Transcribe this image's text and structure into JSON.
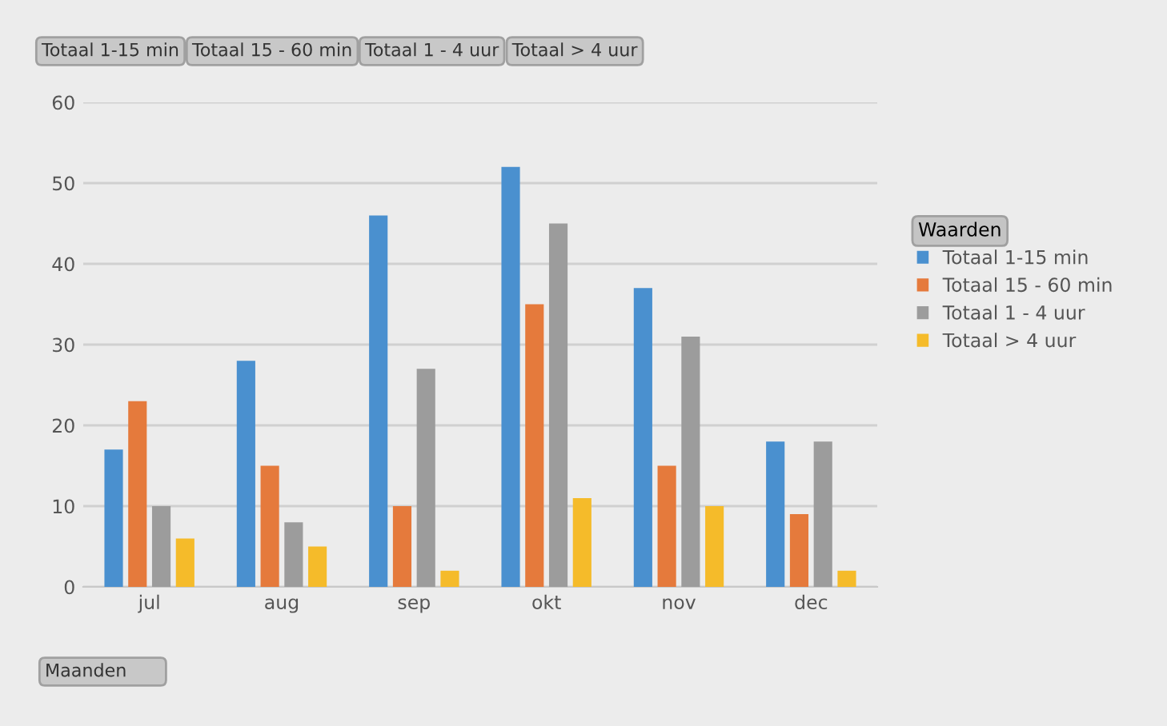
{
  "chart_data": {
    "type": "bar",
    "categories": [
      "jul",
      "aug",
      "sep",
      "okt",
      "nov",
      "dec"
    ],
    "series": [
      {
        "name": "Totaal 1-15 min",
        "color": "#4a90cf",
        "values": [
          17,
          28,
          46,
          52,
          37,
          18
        ]
      },
      {
        "name": "Totaal 15 - 60 min",
        "color": "#e57a3c",
        "values": [
          23,
          15,
          10,
          35,
          15,
          9
        ]
      },
      {
        "name": "Totaal 1 - 4 uur",
        "color": "#9c9c9c",
        "values": [
          10,
          8,
          27,
          45,
          31,
          18
        ]
      },
      {
        "name": "Totaal > 4 uur",
        "color": "#f5bb2a",
        "values": [
          6,
          5,
          2,
          11,
          10,
          2
        ]
      }
    ],
    "legend_title": "Waarden",
    "annotations": [
      "Totaal 1-15 min",
      "Totaal 15 - 60 min",
      "Totaal 1 - 4 uur",
      "Totaal > 4 uur",
      "Maanden"
    ],
    "ylim": [
      0,
      60
    ],
    "yticks": [
      0,
      10,
      20,
      30,
      40,
      50,
      60
    ],
    "grid": "y",
    "legend": "right"
  }
}
